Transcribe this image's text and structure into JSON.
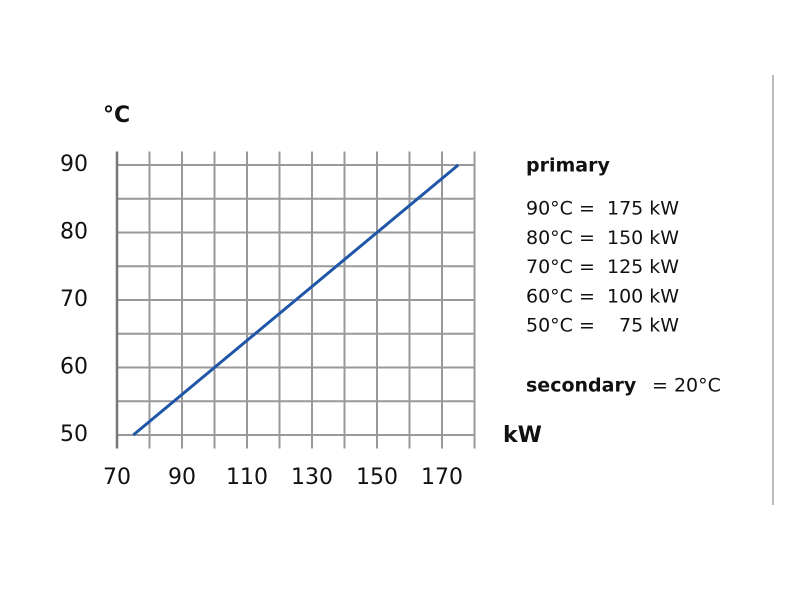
{
  "chart_data": {
    "type": "line",
    "y_label": "°C",
    "x_label": "kW",
    "x": [
      75,
      100,
      125,
      150,
      175
    ],
    "series": [
      {
        "color": "#1f56a8",
        "values": [
          50,
          60,
          70,
          80,
          90
        ]
      }
    ],
    "xlim": [
      70,
      180
    ],
    "ylim": [
      48,
      92
    ],
    "xticks": [
      70,
      90,
      110,
      130,
      150,
      170
    ],
    "yticks": [
      50,
      60,
      70,
      80,
      90
    ],
    "xgrid": [
      70,
      80,
      90,
      100,
      110,
      120,
      130,
      140,
      150,
      160,
      170,
      180
    ],
    "ygrid": [
      50,
      55,
      60,
      65,
      70,
      75,
      80,
      85,
      90
    ],
    "grid": true,
    "legend_title": "primary",
    "annotations": [
      "90°C =  175 kW",
      "80°C =  150 kW",
      "70°C =  125 kW",
      "60°C =  100 kW",
      "50°C =    75 kW"
    ],
    "secondary_label": "secondary",
    "secondary_value": "= 20°C"
  }
}
